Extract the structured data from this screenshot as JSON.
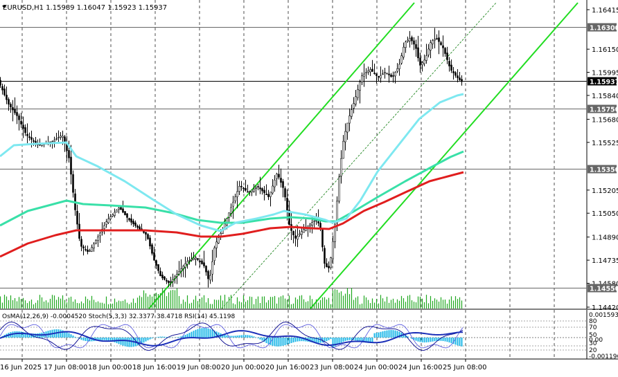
{
  "main_chart": {
    "symbol_header": "EURUSD,H1  1.15989 1.16047 1.15923 1.15937",
    "price_axis": [
      "1.16415",
      "1.16150",
      "1.15995",
      "1.15840",
      "1.15680",
      "1.15525",
      "1.15205",
      "1.15050",
      "1.14890",
      "1.14735",
      "1.14580",
      "1.14420"
    ],
    "levels": [
      {
        "label": "1.16300",
        "price": 1.163,
        "color": "#666666"
      },
      {
        "label": "1.15937",
        "price": 1.15937,
        "color": "#000000"
      },
      {
        "label": "1.15750",
        "price": 1.1575,
        "color": "#666666"
      },
      {
        "label": "1.15350",
        "price": 1.1535,
        "color": "#666666"
      },
      {
        "label": "1.14550",
        "price": 1.1455,
        "color": "#666666"
      }
    ],
    "colors": {
      "ema_fast": "#7ee8f0",
      "ema_mid": "#39e0a8",
      "ema_slow": "#e01e1e",
      "channel": "#22dd22",
      "grid": "#000000",
      "candles": "#000000",
      "volume": "#1fa81f"
    }
  },
  "indicator": {
    "header": "OsMA(12,26,9) -0.0004520  Stoch(5,3,3) 32.3377 38.4718  RSI(14) 45.1198",
    "axis": [
      "0.0015933",
      "80",
      "70",
      "50",
      "0.00",
      "30",
      "20",
      "-0.001196"
    ],
    "colors": {
      "osma": "#20b8e8",
      "stoch_main": "#00008b",
      "stoch_signal": "#6060e0",
      "rsi": "#1b2fb8"
    }
  },
  "time_axis": [
    "16 Jun 2025",
    "17 Jun 08:00",
    "18 Jun 00:00",
    "18 Jun 16:00",
    "19 Jun 08:00",
    "20 Jun 00:00",
    "20 Jun 16:00",
    "23 Jun 08:00",
    "24 Jun 00:00",
    "24 Jun 16:00",
    "25 Jun 08:00"
  ]
}
